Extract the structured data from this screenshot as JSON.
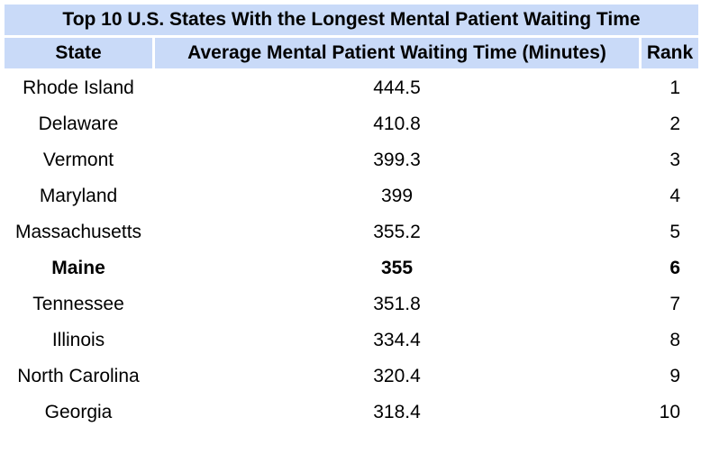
{
  "chart_data": {
    "type": "table",
    "title": "Top 10 U.S. States With the Longest Mental Patient Waiting Time",
    "columns": [
      "State",
      "Average Mental Patient Waiting Time (Minutes)",
      "Rank"
    ],
    "rows": [
      {
        "state": "Rhode Island",
        "wait": "444.5",
        "rank": "1"
      },
      {
        "state": "Delaware",
        "wait": "410.8",
        "rank": "2"
      },
      {
        "state": "Vermont",
        "wait": "399.3",
        "rank": "3"
      },
      {
        "state": "Maryland",
        "wait": "399",
        "rank": "4"
      },
      {
        "state": "Massachusetts",
        "wait": "355.2",
        "rank": "5"
      },
      {
        "state": "Maine",
        "wait": "355",
        "rank": "6",
        "highlighted": true
      },
      {
        "state": "Tennessee",
        "wait": "351.8",
        "rank": "7"
      },
      {
        "state": "Illinois",
        "wait": "334.4",
        "rank": "8"
      },
      {
        "state": "North Carolina",
        "wait": "320.4",
        "rank": "9"
      },
      {
        "state": "Georgia",
        "wait": "318.4",
        "rank": "10"
      }
    ],
    "colors": {
      "header_background": "#c9daf8",
      "body_background": "#ffffff",
      "text": "#000000"
    }
  }
}
